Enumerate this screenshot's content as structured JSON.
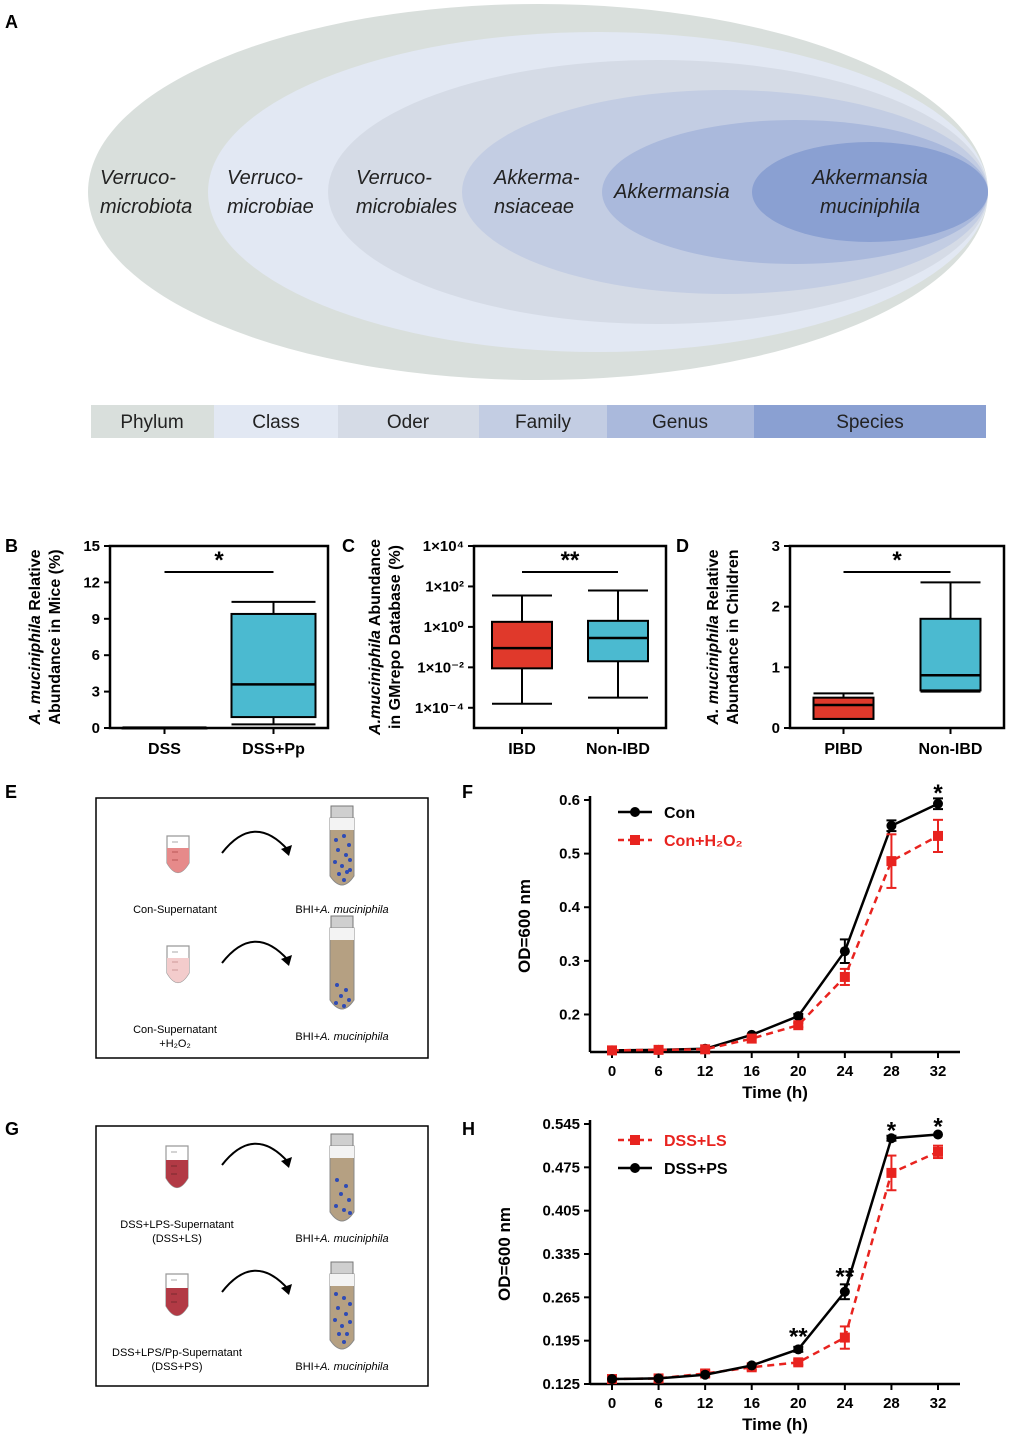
{
  "panels": {
    "A": "A",
    "B": "B",
    "C": "C",
    "D": "D",
    "E": "E",
    "F": "F",
    "G": "G",
    "H": "H"
  },
  "colors": {
    "phylum": "#d9dfdc",
    "class": "#e2e8f3",
    "order": "#d5dbe6",
    "family": "#c3cde3",
    "genus": "#aab9dc",
    "species": "#8aa0d2",
    "red_box": "#e0392b",
    "blue_box": "#4bbad0",
    "series_black": "#000000",
    "series_red": "#e8231f"
  },
  "taxonomy": {
    "ellipses": [
      {
        "line1": "Verruco-",
        "line2": "microbiota",
        "italic": true
      },
      {
        "line1": "Verruco-",
        "line2": "microbiae",
        "italic": true
      },
      {
        "line1": "Verruco-",
        "line2": "microbiales",
        "italic": true
      },
      {
        "line1": "Akkerma-",
        "line2": "nsiaceae",
        "italic": true
      },
      {
        "line1": "Akkermansia",
        "line2": "",
        "italic": true
      },
      {
        "line1": "Akkermansia",
        "line2": "muciniphila",
        "italic": true
      }
    ],
    "ranks": [
      "Phylum",
      "Class",
      "Oder",
      "Family",
      "Genus",
      "Species"
    ]
  },
  "chart_data": [
    {
      "panel": "B",
      "type": "box",
      "ylabel_line1_italic": "A. muciniphila",
      "ylabel_line1_rest": " Relative",
      "ylabel_line2": "Abundance in Mice (%)",
      "ylim": [
        0,
        15
      ],
      "yticks": [
        "0",
        "3",
        "6",
        "9",
        "12",
        "15"
      ],
      "categories": [
        "DSS",
        "DSS+Pp"
      ],
      "boxes": [
        {
          "min": 0,
          "q1": 0,
          "median": 0,
          "q3": 0,
          "max": 0.05,
          "color": "#4bbad0"
        },
        {
          "min": 0.3,
          "q1": 0.9,
          "median": 3.6,
          "q3": 9.4,
          "max": 10.4,
          "color": "#4bbad0"
        }
      ],
      "significance": "*"
    },
    {
      "panel": "C",
      "type": "box",
      "log_scale": true,
      "ylabel_line1_italic": "A.muciniphila",
      "ylabel_line1_rest": " Abundance",
      "ylabel_line2": "in GMrepo Database (%)",
      "ylim_log10": [
        -5,
        4
      ],
      "yticks": [
        "1×10⁻⁴",
        "1×10⁻²",
        "1×10⁰",
        "1×10²",
        "1×10⁴"
      ],
      "ytick_values_log10": [
        -4,
        -2,
        0,
        2,
        4
      ],
      "categories": [
        "IBD",
        "Non-IBD"
      ],
      "boxes_log10": [
        {
          "min": -3.8,
          "q1": -2.05,
          "median": -1.05,
          "q3": 0.25,
          "max": 1.55,
          "color": "#e0392b"
        },
        {
          "min": -3.5,
          "q1": -1.7,
          "median": -0.55,
          "q3": 0.3,
          "max": 1.8,
          "color": "#4bbad0"
        }
      ],
      "significance": "**"
    },
    {
      "panel": "D",
      "type": "box",
      "ylabel_line1_italic": "A. muciniphila",
      "ylabel_line1_rest": " Relative",
      "ylabel_line2": "Abundance in Children",
      "ylim": [
        0,
        3
      ],
      "yticks": [
        "0",
        "1",
        "2",
        "3"
      ],
      "categories": [
        "PIBD",
        "Non-IBD"
      ],
      "boxes": [
        {
          "min": 0.15,
          "q1": 0.15,
          "median": 0.38,
          "q3": 0.5,
          "max": 0.57,
          "color": "#e0392b"
        },
        {
          "min": 0.6,
          "q1": 0.62,
          "median": 0.87,
          "q3": 1.8,
          "max": 2.4,
          "color": "#4bbad0"
        }
      ],
      "significance": "*"
    },
    {
      "panel": "F",
      "type": "line",
      "xlabel": "Time (h)",
      "ylabel": "OD=600 nm",
      "x": [
        0,
        6,
        12,
        16,
        20,
        24,
        28,
        32
      ],
      "xticks": [
        "0",
        "6",
        "12",
        "16",
        "20",
        "24",
        "28",
        "32"
      ],
      "ylim": [
        0.13,
        0.6
      ],
      "yticks": [
        "0.2",
        "0.3",
        "0.4",
        "0.5",
        "0.6"
      ],
      "ytick_values": [
        0.2,
        0.3,
        0.4,
        0.5,
        0.6
      ],
      "series": [
        {
          "name": "Con",
          "values": [
            0.133,
            0.134,
            0.136,
            0.162,
            0.197,
            0.318,
            0.552,
            0.593
          ],
          "errors": [
            0.002,
            0.002,
            0.002,
            0.003,
            0.004,
            0.022,
            0.01,
            0.01
          ],
          "dashed": false,
          "marker": "circle",
          "color": "#000000"
        },
        {
          "name": "Con+H₂O₂",
          "values": [
            0.133,
            0.134,
            0.135,
            0.155,
            0.18,
            0.27,
            0.486,
            0.533
          ],
          "errors": [
            0.002,
            0.002,
            0.002,
            0.003,
            0.004,
            0.015,
            0.05,
            0.03
          ],
          "dashed": true,
          "marker": "square",
          "color": "#e8231f"
        }
      ],
      "annotations": [
        {
          "x": 32,
          "y_value": 0.617,
          "text": "*"
        }
      ]
    },
    {
      "panel": "H",
      "type": "line",
      "xlabel": "Time (h)",
      "ylabel": "OD=600 nm",
      "x": [
        0,
        6,
        12,
        16,
        20,
        24,
        28,
        32
      ],
      "xticks": [
        "0",
        "6",
        "12",
        "16",
        "20",
        "24",
        "28",
        "32"
      ],
      "ylim": [
        0.125,
        0.545
      ],
      "yticks": [
        "0.125",
        "0.195",
        "0.265",
        "0.335",
        "0.405",
        "0.475",
        "0.545"
      ],
      "ytick_values": [
        0.125,
        0.195,
        0.265,
        0.335,
        0.405,
        0.475,
        0.545
      ],
      "series": [
        {
          "name": "DSS+LS",
          "values": [
            0.133,
            0.134,
            0.142,
            0.152,
            0.16,
            0.2,
            0.466,
            0.5
          ],
          "errors": [
            0.002,
            0.002,
            0.005,
            0.004,
            0.004,
            0.018,
            0.028,
            0.01
          ],
          "dashed": true,
          "marker": "square",
          "color": "#e8231f"
        },
        {
          "name": "DSS+PS",
          "values": [
            0.133,
            0.134,
            0.14,
            0.155,
            0.181,
            0.274,
            0.522,
            0.528
          ],
          "errors": [
            0.002,
            0.002,
            0.003,
            0.003,
            0.004,
            0.012,
            0.004,
            0.003
          ],
          "dashed": false,
          "marker": "circle",
          "color": "#000000"
        }
      ],
      "annotations": [
        {
          "x": 20,
          "y_value": 0.205,
          "text": "**"
        },
        {
          "x": 24,
          "y_value": 0.302,
          "text": "**"
        },
        {
          "x": 28,
          "y_value": 0.538,
          "text": "*"
        },
        {
          "x": 32,
          "y_value": 0.544,
          "text": "*"
        }
      ]
    }
  ],
  "schematics": {
    "E": {
      "left1": "Con-Supernatant",
      "right1_prefix": "BHI+",
      "right1_italic": "A. muciniphila",
      "left2_line1": "Con-Supernatant",
      "left2_line2": "+H₂O₂",
      "right2_prefix": "BHI+",
      "right2_italic": "A. muciniphila"
    },
    "G": {
      "left1_line1": "DSS+LPS-Supernatant",
      "left1_line2": "(DSS+LS)",
      "right1_prefix": "BHI+",
      "right1_italic": "A. muciniphila",
      "left2_line1": "DSS+LPS/Pp-Supernatant",
      "left2_line2": "(DSS+PS)",
      "right2_prefix": "BHI+",
      "right2_italic": "A. muciniphila"
    }
  }
}
